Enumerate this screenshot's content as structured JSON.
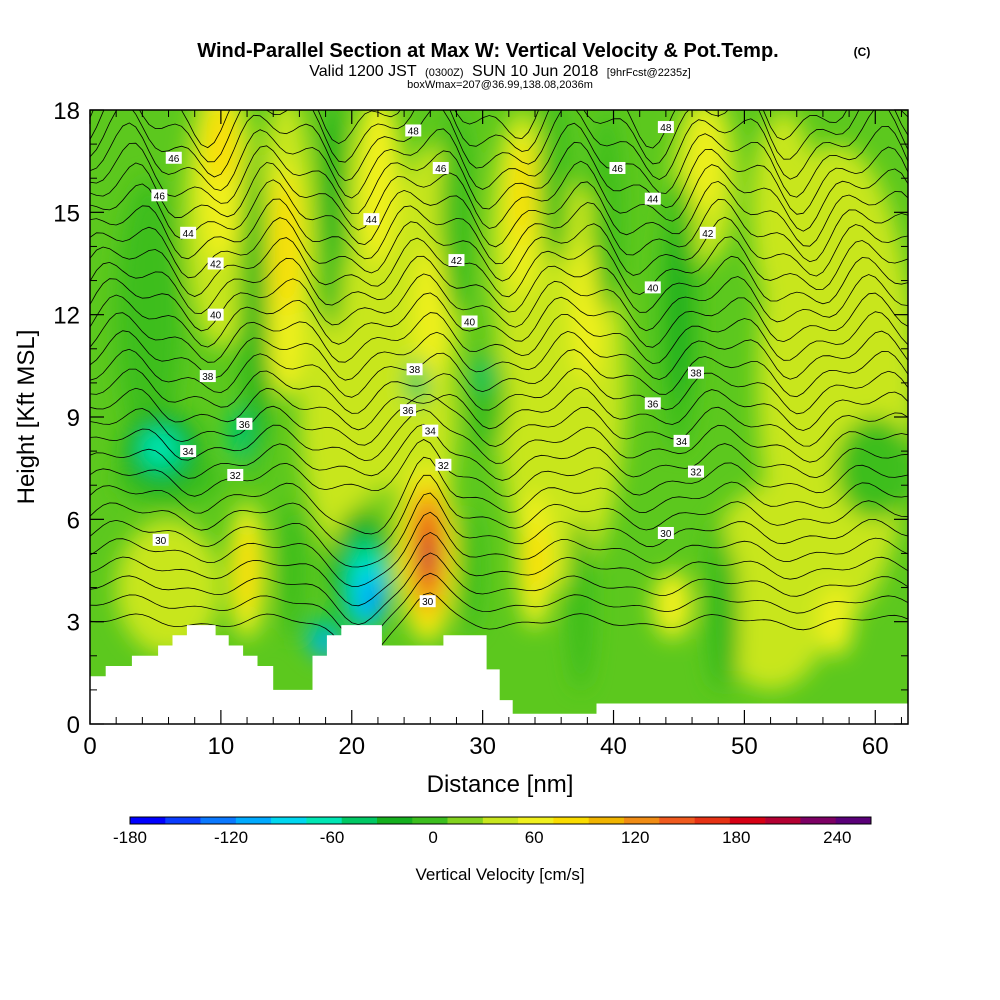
{
  "chart_data": {
    "type": "heatmap",
    "title": "Wind-Parallel Section at Max W: Vertical Velocity & Pot.Temp.",
    "title_suffix": "(C)",
    "subtitle_valid": "Valid 1200 JST",
    "subtitle_utc": "(0300Z)",
    "subtitle_date": "SUN 10 Jun 2018",
    "subtitle_fcst": "[9hrFcst@2235z]",
    "subtitle_box": "boxWmax=207@36.99,138.08,2036m",
    "xlabel": "Distance [nm]",
    "ylabel": "Height [Kft MSL]",
    "x_ticks": [
      "0",
      "10",
      "20",
      "30",
      "40",
      "50",
      "60"
    ],
    "y_ticks": [
      "0",
      "3",
      "6",
      "9",
      "12",
      "15",
      "18"
    ],
    "xlim": [
      0,
      62.5
    ],
    "ylim": [
      0,
      18
    ],
    "colorbar": {
      "label": "Vertical Velocity [cm/s]",
      "tick_labels": [
        "-180",
        "-120",
        "-60",
        "0",
        "60",
        "120",
        "180",
        "240"
      ],
      "tick_values": [
        -180,
        -120,
        -60,
        0,
        60,
        120,
        180,
        240
      ],
      "range": [
        -180,
        260
      ],
      "colors": [
        "#0000ff",
        "#0a3cff",
        "#0a78ff",
        "#00aaff",
        "#00d7f0",
        "#00e6b4",
        "#00c864",
        "#14af1e",
        "#3cbe1e",
        "#82d21e",
        "#c8e61e",
        "#f0f01e",
        "#fadc00",
        "#f0b400",
        "#f08c14",
        "#f05a1e",
        "#e63214",
        "#d70014",
        "#b40032",
        "#7d0064",
        "#5a0078"
      ]
    },
    "contour_field": "Potential Temperature (C)",
    "contour_levels": [
      30,
      32,
      34,
      36,
      38,
      40,
      42,
      44,
      46,
      48
    ],
    "contour_labels": [
      {
        "text": "48",
        "x": 24.7,
        "y": 17.4
      },
      {
        "text": "48",
        "x": 44.0,
        "y": 17.5
      },
      {
        "text": "46",
        "x": 6.4,
        "y": 16.6
      },
      {
        "text": "46",
        "x": 26.8,
        "y": 16.3
      },
      {
        "text": "46",
        "x": 40.3,
        "y": 16.3
      },
      {
        "text": "46",
        "x": 5.3,
        "y": 15.5
      },
      {
        "text": "44",
        "x": 7.5,
        "y": 14.4
      },
      {
        "text": "44",
        "x": 21.5,
        "y": 14.8
      },
      {
        "text": "44",
        "x": 43.0,
        "y": 15.4
      },
      {
        "text": "42",
        "x": 9.6,
        "y": 13.5
      },
      {
        "text": "42",
        "x": 28.0,
        "y": 13.6
      },
      {
        "text": "42",
        "x": 47.2,
        "y": 14.4
      },
      {
        "text": "40",
        "x": 9.6,
        "y": 12.0
      },
      {
        "text": "40",
        "x": 29.0,
        "y": 11.8
      },
      {
        "text": "40",
        "x": 43.0,
        "y": 12.8
      },
      {
        "text": "38",
        "x": 9.0,
        "y": 10.2
      },
      {
        "text": "38",
        "x": 24.8,
        "y": 10.4
      },
      {
        "text": "38",
        "x": 46.3,
        "y": 10.3
      },
      {
        "text": "36",
        "x": 11.8,
        "y": 8.8
      },
      {
        "text": "36",
        "x": 24.3,
        "y": 9.2
      },
      {
        "text": "36",
        "x": 43.0,
        "y": 9.4
      },
      {
        "text": "34",
        "x": 7.5,
        "y": 8.0
      },
      {
        "text": "34",
        "x": 26.0,
        "y": 8.6
      },
      {
        "text": "34",
        "x": 45.2,
        "y": 8.3
      },
      {
        "text": "32",
        "x": 11.1,
        "y": 7.3
      },
      {
        "text": "32",
        "x": 27.0,
        "y": 7.6
      },
      {
        "text": "32",
        "x": 46.3,
        "y": 7.4
      },
      {
        "text": "30",
        "x": 5.4,
        "y": 5.4
      },
      {
        "text": "30",
        "x": 44.0,
        "y": 5.6
      },
      {
        "text": "30",
        "x": 25.8,
        "y": 3.6
      }
    ],
    "terrain": [
      [
        0,
        1.4
      ],
      [
        1.2,
        1.4
      ],
      [
        1.2,
        1.7
      ],
      [
        3.2,
        1.7
      ],
      [
        3.2,
        2.0
      ],
      [
        5.2,
        2.0
      ],
      [
        5.2,
        2.3
      ],
      [
        6.3,
        2.3
      ],
      [
        6.3,
        2.6
      ],
      [
        7.4,
        2.6
      ],
      [
        7.4,
        2.9
      ],
      [
        9.6,
        2.9
      ],
      [
        9.6,
        2.6
      ],
      [
        10.6,
        2.6
      ],
      [
        10.6,
        2.3
      ],
      [
        11.7,
        2.3
      ],
      [
        11.7,
        2.0
      ],
      [
        12.8,
        2.0
      ],
      [
        12.8,
        1.7
      ],
      [
        14.0,
        1.7
      ],
      [
        14.0,
        1.0
      ],
      [
        17.0,
        1.0
      ],
      [
        17.0,
        2.0
      ],
      [
        18.1,
        2.0
      ],
      [
        18.1,
        2.6
      ],
      [
        19.2,
        2.6
      ],
      [
        19.2,
        2.9
      ],
      [
        22.3,
        2.9
      ],
      [
        22.3,
        2.3
      ],
      [
        27.0,
        2.3
      ],
      [
        27.0,
        2.6
      ],
      [
        30.3,
        2.6
      ],
      [
        30.3,
        1.6
      ],
      [
        31.3,
        1.6
      ],
      [
        31.3,
        0.7
      ],
      [
        32.3,
        0.7
      ],
      [
        32.3,
        0.3
      ],
      [
        38.7,
        0.3
      ],
      [
        38.7,
        0.6
      ],
      [
        62.5,
        0.6
      ]
    ],
    "peak_w": 207,
    "peak_location": {
      "x": 25.8,
      "y": 5.0
    }
  }
}
